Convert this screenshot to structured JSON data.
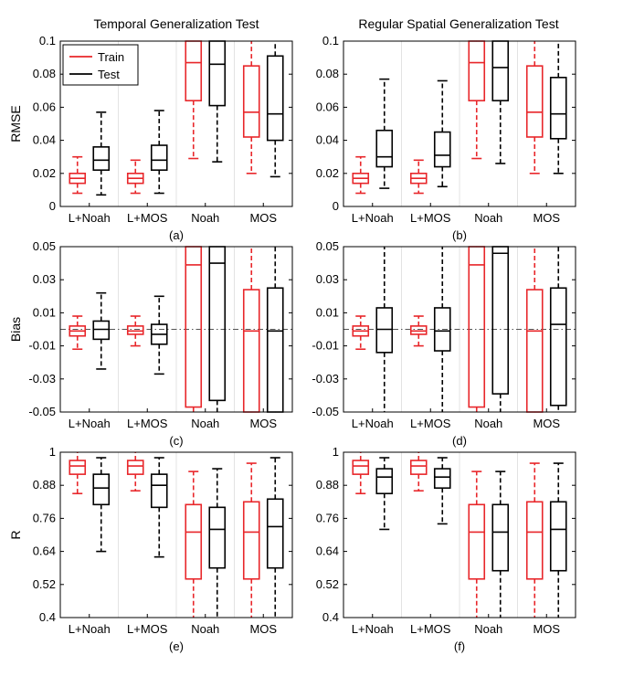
{
  "figure": {
    "column_titles": [
      "Temporal Generalization Test",
      "Regular Spatial Generalization Test"
    ],
    "row_ylabels": [
      "RMSE",
      "Bias",
      "R"
    ],
    "legend": [
      {
        "label": "Train",
        "color": "#e8262a"
      },
      {
        "label": "Test",
        "color": "#000000"
      }
    ]
  },
  "chart_data": [
    {
      "type": "boxplot",
      "panel_label": "(a)",
      "ylabel": "RMSE",
      "categories": [
        "L+Noah",
        "L+MOS",
        "Noah",
        "MOS"
      ],
      "ylim": [
        0,
        0.1
      ],
      "yticks": [
        "0",
        "0.02",
        "0.04",
        "0.06",
        "0.08",
        "0.1"
      ],
      "ytick_values": [
        0,
        0.02,
        0.04,
        0.06,
        0.08,
        0.1
      ],
      "series": [
        {
          "name": "Train",
          "color": "#e8262a",
          "boxes": [
            {
              "whisker_low": 0.008,
              "q1": 0.014,
              "median": 0.017,
              "q3": 0.02,
              "whisker_high": 0.03
            },
            {
              "whisker_low": 0.008,
              "q1": 0.014,
              "median": 0.017,
              "q3": 0.02,
              "whisker_high": 0.028
            },
            {
              "whisker_low": 0.029,
              "q1": 0.064,
              "median": 0.087,
              "q3": 0.1,
              "whisker_high": 0.1
            },
            {
              "whisker_low": 0.02,
              "q1": 0.042,
              "median": 0.057,
              "q3": 0.085,
              "whisker_high": 0.1
            }
          ]
        },
        {
          "name": "Test",
          "color": "#000000",
          "boxes": [
            {
              "whisker_low": 0.007,
              "q1": 0.022,
              "median": 0.028,
              "q3": 0.036,
              "whisker_high": 0.057
            },
            {
              "whisker_low": 0.008,
              "q1": 0.022,
              "median": 0.028,
              "q3": 0.037,
              "whisker_high": 0.058
            },
            {
              "whisker_low": 0.027,
              "q1": 0.061,
              "median": 0.086,
              "q3": 0.1,
              "whisker_high": 0.1
            },
            {
              "whisker_low": 0.018,
              "q1": 0.04,
              "median": 0.056,
              "q3": 0.091,
              "whisker_high": 0.1
            }
          ]
        }
      ]
    },
    {
      "type": "boxplot",
      "panel_label": "(b)",
      "ylabel": "",
      "categories": [
        "L+Noah",
        "L+MOS",
        "Noah",
        "MOS"
      ],
      "ylim": [
        0,
        0.1
      ],
      "yticks": [
        "0",
        "0.02",
        "0.04",
        "0.06",
        "0.08",
        "0.1"
      ],
      "ytick_values": [
        0,
        0.02,
        0.04,
        0.06,
        0.08,
        0.1
      ],
      "series": [
        {
          "name": "Train",
          "color": "#e8262a",
          "boxes": [
            {
              "whisker_low": 0.008,
              "q1": 0.014,
              "median": 0.017,
              "q3": 0.02,
              "whisker_high": 0.03
            },
            {
              "whisker_low": 0.008,
              "q1": 0.014,
              "median": 0.017,
              "q3": 0.02,
              "whisker_high": 0.028
            },
            {
              "whisker_low": 0.029,
              "q1": 0.064,
              "median": 0.087,
              "q3": 0.1,
              "whisker_high": 0.1
            },
            {
              "whisker_low": 0.02,
              "q1": 0.042,
              "median": 0.057,
              "q3": 0.085,
              "whisker_high": 0.1
            }
          ]
        },
        {
          "name": "Test",
          "color": "#000000",
          "boxes": [
            {
              "whisker_low": 0.011,
              "q1": 0.024,
              "median": 0.03,
              "q3": 0.046,
              "whisker_high": 0.077
            },
            {
              "whisker_low": 0.012,
              "q1": 0.024,
              "median": 0.031,
              "q3": 0.045,
              "whisker_high": 0.076
            },
            {
              "whisker_low": 0.026,
              "q1": 0.064,
              "median": 0.084,
              "q3": 0.1,
              "whisker_high": 0.1
            },
            {
              "whisker_low": 0.02,
              "q1": 0.041,
              "median": 0.056,
              "q3": 0.078,
              "whisker_high": 0.1
            }
          ]
        }
      ]
    },
    {
      "type": "boxplot",
      "panel_label": "(c)",
      "ylabel": "Bias",
      "categories": [
        "L+Noah",
        "L+MOS",
        "Noah",
        "MOS"
      ],
      "ylim": [
        -0.05,
        0.05
      ],
      "yticks": [
        "-0.05",
        "-0.03",
        "-0.01",
        "0.01",
        "0.03",
        "0.05"
      ],
      "ytick_values": [
        -0.05,
        -0.03,
        -0.01,
        0.01,
        0.03,
        0.05
      ],
      "reference_line": 0,
      "series": [
        {
          "name": "Train",
          "color": "#e8262a",
          "boxes": [
            {
              "whisker_low": -0.012,
              "q1": -0.004,
              "median": -0.001,
              "q3": 0.002,
              "whisker_high": 0.008
            },
            {
              "whisker_low": -0.01,
              "q1": -0.003,
              "median": -0.001,
              "q3": 0.002,
              "whisker_high": 0.008
            },
            {
              "whisker_low": -0.05,
              "q1": -0.047,
              "median": 0.039,
              "q3": 0.05,
              "whisker_high": 0.05
            },
            {
              "whisker_low": -0.05,
              "q1": -0.05,
              "median": -0.001,
              "q3": 0.024,
              "whisker_high": 0.05
            }
          ]
        },
        {
          "name": "Test",
          "color": "#000000",
          "boxes": [
            {
              "whisker_low": -0.024,
              "q1": -0.006,
              "median": 0.0,
              "q3": 0.005,
              "whisker_high": 0.022
            },
            {
              "whisker_low": -0.027,
              "q1": -0.009,
              "median": -0.003,
              "q3": 0.003,
              "whisker_high": 0.02
            },
            {
              "whisker_low": -0.05,
              "q1": -0.043,
              "median": 0.04,
              "q3": 0.05,
              "whisker_high": 0.05
            },
            {
              "whisker_low": -0.05,
              "q1": -0.05,
              "median": -0.001,
              "q3": 0.025,
              "whisker_high": 0.05
            }
          ]
        }
      ]
    },
    {
      "type": "boxplot",
      "panel_label": "(d)",
      "ylabel": "",
      "categories": [
        "L+Noah",
        "L+MOS",
        "Noah",
        "MOS"
      ],
      "ylim": [
        -0.05,
        0.05
      ],
      "yticks": [
        "-0.05",
        "-0.03",
        "-0.01",
        "0.01",
        "0.03",
        "0.05"
      ],
      "ytick_values": [
        -0.05,
        -0.03,
        -0.01,
        0.01,
        0.03,
        0.05
      ],
      "reference_line": 0,
      "series": [
        {
          "name": "Train",
          "color": "#e8262a",
          "boxes": [
            {
              "whisker_low": -0.012,
              "q1": -0.004,
              "median": -0.001,
              "q3": 0.002,
              "whisker_high": 0.008
            },
            {
              "whisker_low": -0.01,
              "q1": -0.003,
              "median": -0.001,
              "q3": 0.002,
              "whisker_high": 0.008
            },
            {
              "whisker_low": -0.05,
              "q1": -0.047,
              "median": 0.039,
              "q3": 0.05,
              "whisker_high": 0.05
            },
            {
              "whisker_low": -0.05,
              "q1": -0.05,
              "median": -0.001,
              "q3": 0.024,
              "whisker_high": 0.05
            }
          ]
        },
        {
          "name": "Test",
          "color": "#000000",
          "boxes": [
            {
              "whisker_low": -0.05,
              "q1": -0.014,
              "median": 0.0,
              "q3": 0.013,
              "whisker_high": 0.05
            },
            {
              "whisker_low": -0.05,
              "q1": -0.013,
              "median": -0.001,
              "q3": 0.013,
              "whisker_high": 0.05
            },
            {
              "whisker_low": -0.05,
              "q1": -0.039,
              "median": 0.046,
              "q3": 0.05,
              "whisker_high": 0.05
            },
            {
              "whisker_low": -0.05,
              "q1": -0.046,
              "median": 0.003,
              "q3": 0.025,
              "whisker_high": 0.05
            }
          ]
        }
      ]
    },
    {
      "type": "boxplot",
      "panel_label": "(e)",
      "ylabel": "R",
      "categories": [
        "L+Noah",
        "L+MOS",
        "Noah",
        "MOS"
      ],
      "ylim": [
        0.4,
        1
      ],
      "yticks": [
        "0.4",
        "0.52",
        "0.64",
        "0.76",
        "0.88",
        "1"
      ],
      "ytick_values": [
        0.4,
        0.52,
        0.64,
        0.76,
        0.88,
        1
      ],
      "series": [
        {
          "name": "Train",
          "color": "#e8262a",
          "boxes": [
            {
              "whisker_low": 0.85,
              "q1": 0.92,
              "median": 0.95,
              "q3": 0.97,
              "whisker_high": 1.0
            },
            {
              "whisker_low": 0.86,
              "q1": 0.92,
              "median": 0.95,
              "q3": 0.97,
              "whisker_high": 1.0
            },
            {
              "whisker_low": 0.4,
              "q1": 0.54,
              "median": 0.71,
              "q3": 0.81,
              "whisker_high": 0.93
            },
            {
              "whisker_low": 0.4,
              "q1": 0.54,
              "median": 0.71,
              "q3": 0.82,
              "whisker_high": 0.96
            }
          ]
        },
        {
          "name": "Test",
          "color": "#000000",
          "boxes": [
            {
              "whisker_low": 0.64,
              "q1": 0.81,
              "median": 0.87,
              "q3": 0.92,
              "whisker_high": 0.98
            },
            {
              "whisker_low": 0.62,
              "q1": 0.8,
              "median": 0.88,
              "q3": 0.92,
              "whisker_high": 0.98
            },
            {
              "whisker_low": 0.4,
              "q1": 0.58,
              "median": 0.72,
              "q3": 0.8,
              "whisker_high": 0.94
            },
            {
              "whisker_low": 0.4,
              "q1": 0.58,
              "median": 0.73,
              "q3": 0.83,
              "whisker_high": 0.98
            }
          ]
        }
      ]
    },
    {
      "type": "boxplot",
      "panel_label": "(f)",
      "ylabel": "",
      "categories": [
        "L+Noah",
        "L+MOS",
        "Noah",
        "MOS"
      ],
      "ylim": [
        0.4,
        1
      ],
      "yticks": [
        "0.4",
        "0.52",
        "0.64",
        "0.76",
        "0.88",
        "1"
      ],
      "ytick_values": [
        0.4,
        0.52,
        0.64,
        0.76,
        0.88,
        1
      ],
      "series": [
        {
          "name": "Train",
          "color": "#e8262a",
          "boxes": [
            {
              "whisker_low": 0.85,
              "q1": 0.92,
              "median": 0.95,
              "q3": 0.97,
              "whisker_high": 1.0
            },
            {
              "whisker_low": 0.86,
              "q1": 0.92,
              "median": 0.95,
              "q3": 0.97,
              "whisker_high": 1.0
            },
            {
              "whisker_low": 0.4,
              "q1": 0.54,
              "median": 0.71,
              "q3": 0.81,
              "whisker_high": 0.93
            },
            {
              "whisker_low": 0.4,
              "q1": 0.54,
              "median": 0.71,
              "q3": 0.82,
              "whisker_high": 0.96
            }
          ]
        },
        {
          "name": "Test",
          "color": "#000000",
          "boxes": [
            {
              "whisker_low": 0.72,
              "q1": 0.85,
              "median": 0.91,
              "q3": 0.94,
              "whisker_high": 0.98
            },
            {
              "whisker_low": 0.74,
              "q1": 0.87,
              "median": 0.91,
              "q3": 0.94,
              "whisker_high": 0.98
            },
            {
              "whisker_low": 0.4,
              "q1": 0.57,
              "median": 0.71,
              "q3": 0.81,
              "whisker_high": 0.93
            },
            {
              "whisker_low": 0.4,
              "q1": 0.57,
              "median": 0.72,
              "q3": 0.82,
              "whisker_high": 0.96
            }
          ]
        }
      ]
    }
  ]
}
